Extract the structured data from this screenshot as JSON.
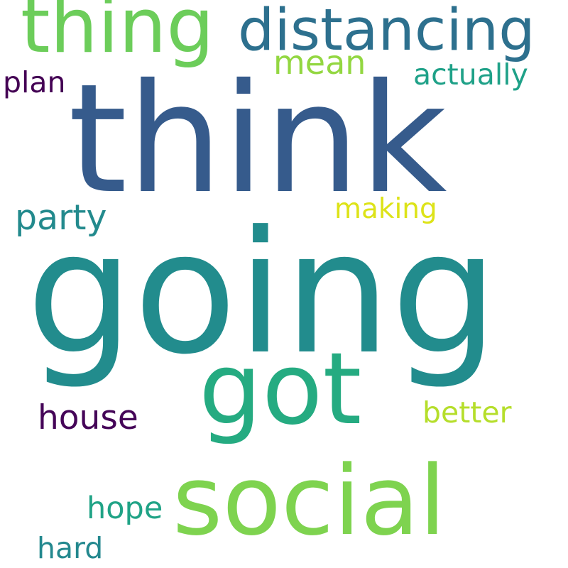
{
  "cloud": {
    "background": "#ffffff",
    "words": [
      {
        "key": "going",
        "text": "going",
        "color": "#228c8d"
      },
      {
        "key": "think",
        "text": "think",
        "color": "#365b8c"
      },
      {
        "key": "got",
        "text": "got",
        "color": "#25ab81"
      },
      {
        "key": "social",
        "text": "social",
        "color": "#7ed34f"
      },
      {
        "key": "thing",
        "text": "thing",
        "color": "#6ccd5a"
      },
      {
        "key": "distancing",
        "text": "distancing",
        "color": "#2d708e"
      },
      {
        "key": "party",
        "text": "party",
        "color": "#238a8d"
      },
      {
        "key": "house",
        "text": "house",
        "color": "#450558"
      },
      {
        "key": "mean",
        "text": "mean",
        "color": "#93d741"
      },
      {
        "key": "actually",
        "text": "actually",
        "color": "#1fa188"
      },
      {
        "key": "plan",
        "text": "plan",
        "color": "#440154"
      },
      {
        "key": "making",
        "text": "making",
        "color": "#dde318"
      },
      {
        "key": "better",
        "text": "better",
        "color": "#b5de2b"
      },
      {
        "key": "hope",
        "text": "hope",
        "color": "#20a386"
      },
      {
        "key": "hard",
        "text": "hard",
        "color": "#23888e"
      }
    ]
  }
}
